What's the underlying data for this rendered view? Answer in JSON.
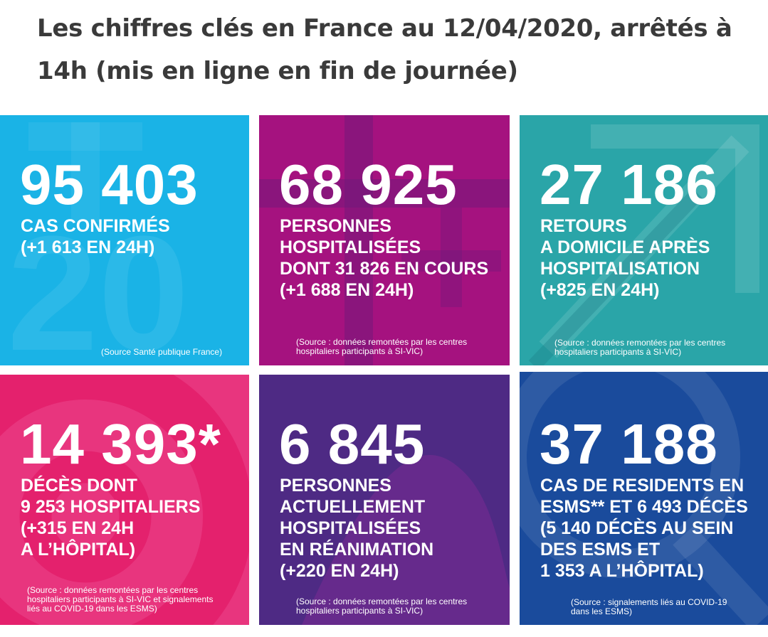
{
  "title": "Les chiffres clés en France au 12/04/2020, arrêtés à 14h (mis en ligne en fin de journée)",
  "tiles": [
    {
      "number": "95 403",
      "lines": [
        "CAS CONFIRMÉS",
        "(+1 613 EN 24H)"
      ],
      "source": [
        "(Source Santé publique France)"
      ],
      "color": "#1ab3e6"
    },
    {
      "number": "68 925",
      "lines": [
        "PERSONNES",
        "HOSPITALISÉES",
        "DONT 31 826 EN COURS",
        "(+1 688 EN 24H)"
      ],
      "source": [
        "(Source : données remontées par les centres",
        "hospitaliers participants à SI-VIC)"
      ],
      "color": "#a5127f"
    },
    {
      "number": "27 186",
      "lines": [
        "RETOURS",
        "A DOMICILE APRÈS",
        "HOSPITALISATION",
        "(+825 EN 24H)"
      ],
      "source": [
        "(Source : données remontées par les centres",
        "hospitaliers participants à SI-VIC)"
      ],
      "color": "#2aa5a8"
    },
    {
      "number": "14 393*",
      "lines": [
        "DÉCÈS DONT",
        "9 253 HOSPITALIERS",
        "(+315 EN 24H",
        "A L’HÔPITAL)"
      ],
      "source": [
        "(Source : données remontées par les centres",
        "hospitaliers participants à SI-VIC et signalements",
        "liés au COVID-19 dans les ESMS)"
      ],
      "color": "#e8357e"
    },
    {
      "number": "6 845",
      "lines": [
        "PERSONNES",
        "ACTUELLEMENT",
        "HOSPITALISÉES",
        "EN RÉANIMATION",
        "(+220 EN 24H)"
      ],
      "source": [
        "(Source : données remontées par les centres",
        "hospitaliers participants à SI-VIC)"
      ],
      "color": "#4e2a84"
    },
    {
      "number": "37 188",
      "lines": [
        "CAS DE RESIDENTS EN",
        "ESMS** ET 6 493 DÉCÈS",
        "(5 140 DÉCÈS AU SEIN",
        "DES ESMS ET",
        "1 353 A L’HÔPITAL)"
      ],
      "source": [
        "(Source : signalements liés au COVID-19",
        "dans les ESMS)"
      ],
      "color": "#1a4b9c"
    }
  ]
}
